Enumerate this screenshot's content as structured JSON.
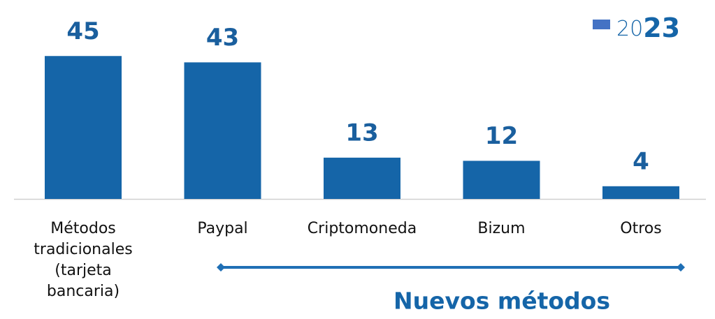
{
  "chart_data": {
    "type": "bar",
    "categories": [
      "Métodos tradicionales (tarjeta bancaria)",
      "Paypal",
      "Criptomoneda",
      "Bizum",
      "Otros"
    ],
    "series": [
      {
        "name": "2023",
        "color": "#1565a8",
        "values": [
          45,
          43,
          13,
          12,
          4
        ]
      }
    ],
    "legend_color": "#4472c4",
    "annotation": "Nuevos métodos"
  }
}
